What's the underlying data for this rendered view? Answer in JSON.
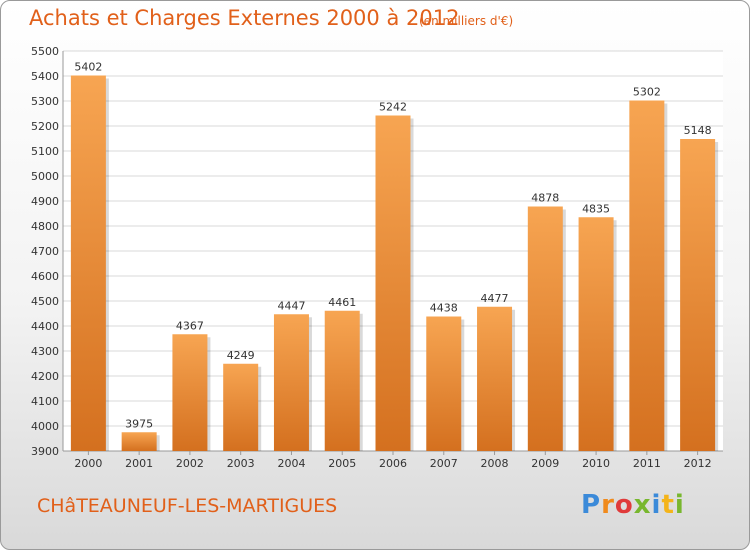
{
  "header": {
    "title": "Achats et Charges Externes 2000 à 2012",
    "subtitle": "(en milliers d'€)"
  },
  "footer": {
    "city": "CHâTEAUNEUF-LES-MARTIGUES",
    "logo": [
      "P",
      "r",
      "o",
      "x",
      "i",
      "t",
      "i"
    ]
  },
  "colors": {
    "bar_top": "#f7a552",
    "bar_bottom": "#d4701f",
    "title": "#e1601a",
    "grid": "#d8d8d8"
  },
  "chart_data": {
    "type": "bar",
    "title": "Achats et Charges Externes 2000 à 2012",
    "subtitle": "(en milliers d'€)",
    "categories": [
      "2000",
      "2001",
      "2002",
      "2003",
      "2004",
      "2005",
      "2006",
      "2007",
      "2008",
      "2009",
      "2010",
      "2011",
      "2012"
    ],
    "values": [
      5402,
      3975,
      4367,
      4249,
      4447,
      4461,
      5242,
      4438,
      4477,
      4878,
      4835,
      5302,
      5148
    ],
    "ylim": [
      3900,
      5500
    ],
    "yticks": [
      3900,
      4000,
      4100,
      4200,
      4300,
      4400,
      4500,
      4600,
      4700,
      4800,
      4900,
      5000,
      5100,
      5200,
      5300,
      5400,
      5500
    ],
    "grid": true,
    "data_labels": true
  }
}
